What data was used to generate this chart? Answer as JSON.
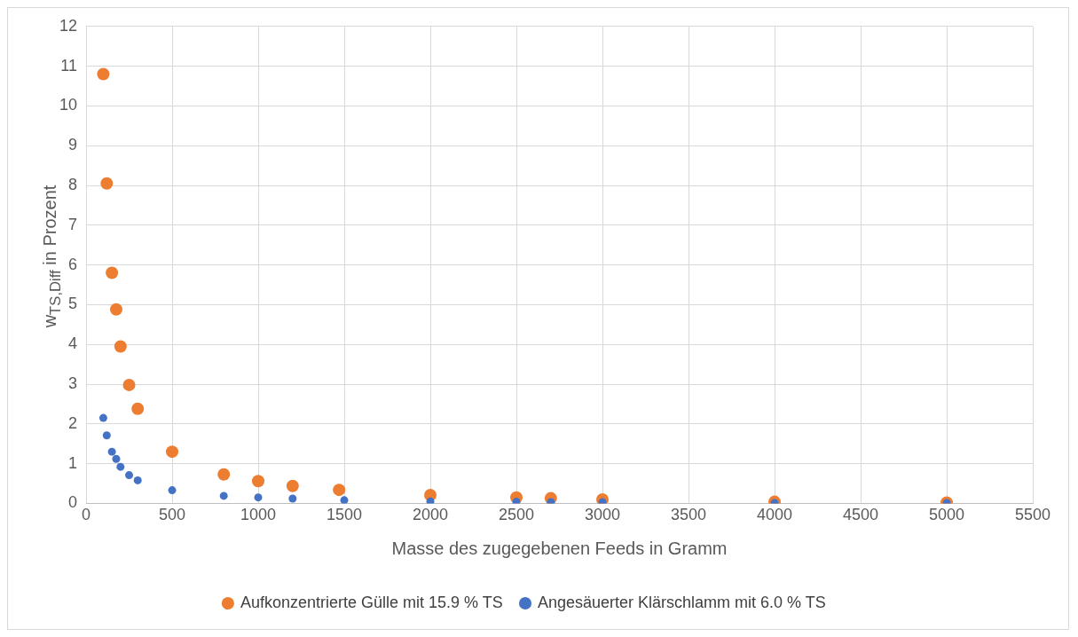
{
  "chart_data": {
    "type": "scatter",
    "xlabel": "Masse des zugegebenen Feeds in Gramm",
    "ylabel": "w$_{TS,Diff}$ in Prozent",
    "xlim": [
      0,
      5500
    ],
    "xticks": [
      0,
      500,
      1000,
      1500,
      2000,
      2500,
      3000,
      3500,
      4000,
      4500,
      5000,
      5500
    ],
    "ylim": [
      0,
      12
    ],
    "yticks": [
      0,
      1,
      2,
      3,
      4,
      5,
      6,
      7,
      8,
      9,
      10,
      11,
      12
    ],
    "grid": true,
    "legend": "bottom",
    "marker": "circle",
    "series": [
      {
        "name": "Aufkonzentrierte Gülle mit 15.9 % TS",
        "color": "#ed7d31",
        "x": [
          100,
          120,
          150,
          175,
          200,
          250,
          300,
          500,
          800,
          1000,
          1200,
          1470,
          2000,
          2500,
          2700,
          3000,
          4000,
          5000
        ],
        "values": [
          10.8,
          8.05,
          5.8,
          4.88,
          3.95,
          2.98,
          2.38,
          1.3,
          0.73,
          0.56,
          0.44,
          0.34,
          0.21,
          0.15,
          0.13,
          0.1,
          0.04,
          0.02
        ]
      },
      {
        "name": "Angesäuerter Klärschlamm mit 6.0 % TS",
        "color": "#4472c4",
        "x": [
          100,
          120,
          150,
          175,
          200,
          250,
          300,
          500,
          800,
          1000,
          1200,
          1500,
          2000,
          2500,
          2700,
          3000,
          4000,
          5000
        ],
        "values": [
          2.15,
          1.71,
          1.3,
          1.12,
          0.92,
          0.71,
          0.58,
          0.33,
          0.19,
          0.15,
          0.12,
          0.08,
          0.05,
          0.04,
          0.03,
          0.03,
          0.01,
          0.01
        ]
      }
    ]
  }
}
